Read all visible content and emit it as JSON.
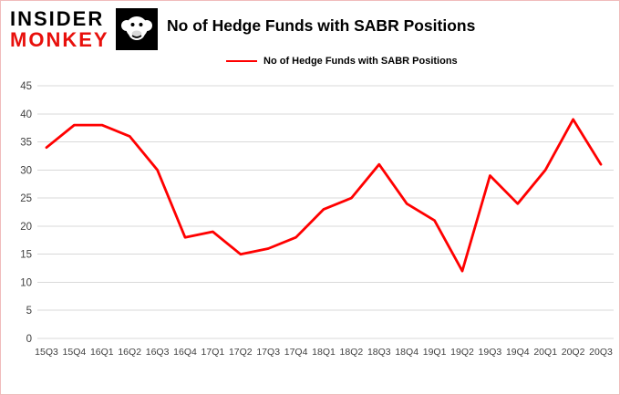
{
  "logo": {
    "line1": "INSIDER",
    "line2": "MONKEY"
  },
  "title": "No of Hedge Funds with SABR Positions",
  "legend": {
    "label": "No of Hedge Funds with SABR Positions"
  },
  "colors": {
    "line": "#ff0000",
    "grid": "#d9d9d9",
    "tick_text": "#404040",
    "logo_red": "#e8100c",
    "frame_border": "#f0bcbc"
  },
  "chart_data": {
    "type": "line",
    "title": "No of Hedge Funds with SABR Positions",
    "categories": [
      "15Q3",
      "15Q4",
      "16Q1",
      "16Q2",
      "16Q3",
      "16Q4",
      "17Q1",
      "17Q2",
      "17Q3",
      "17Q4",
      "18Q1",
      "18Q2",
      "18Q3",
      "18Q4",
      "19Q1",
      "19Q2",
      "19Q3",
      "19Q4",
      "20Q1",
      "20Q2",
      "20Q3"
    ],
    "series": [
      {
        "name": "No of Hedge Funds with SABR Positions",
        "values": [
          34,
          38,
          38,
          36,
          30,
          18,
          19,
          15,
          16,
          18,
          23,
          25,
          31,
          24,
          21,
          12,
          29,
          24,
          30,
          39,
          31
        ]
      }
    ],
    "xlabel": "",
    "ylabel": "",
    "ylim": [
      0,
      45
    ],
    "yticks": [
      0,
      5,
      10,
      15,
      20,
      25,
      30,
      35,
      40,
      45
    ],
    "grid": true,
    "legend_position": "top"
  }
}
